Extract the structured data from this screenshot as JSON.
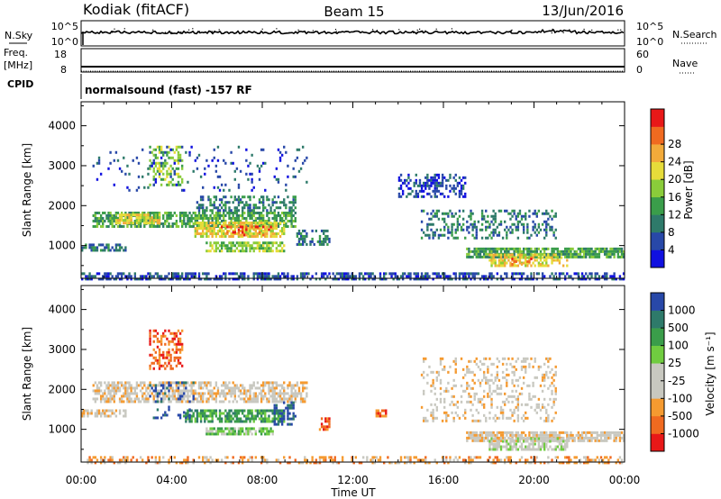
{
  "header": {
    "radar": "Kodiak (fitACF)",
    "beam": "Beam 15",
    "date": "13/Jun/2016"
  },
  "summary": {
    "nsky_label": "N.Sky",
    "nsky_ticks": [
      "10^5",
      "10^0"
    ],
    "nsearch_label": "N.Search",
    "nsearch_ticks": [
      "10^5",
      "10^0"
    ],
    "freq_label_1": "Freq.",
    "freq_label_2": "[MHz]",
    "freq_ticks": [
      "18",
      "8"
    ],
    "nave_label": "Nave",
    "nave_ticks": [
      "60",
      "0"
    ],
    "cpid_label": "CPID",
    "cpid_text": "normalsound (fast) -157 RF"
  },
  "colors": {
    "power": [
      "#1010e0",
      "#2848a8",
      "#2e7a6a",
      "#3a9d4a",
      "#8acc3a",
      "#e6dc3a",
      "#f2aa3a",
      "#f06a20",
      "#e81818"
    ],
    "velocity": [
      "#e81818",
      "#f06a20",
      "#f59a30",
      "#c8c8c0",
      "#c8c8c0",
      "#70cc40",
      "#3a9d4a",
      "#2e7a6a",
      "#2848a8"
    ]
  },
  "chart_data": [
    {
      "type": "heatmap",
      "title": "Power",
      "ylabel": "Slant Range [km]",
      "xlabel": "",
      "x_ticks": [
        "00:00",
        "04:00",
        "08:00",
        "12:00",
        "16:00",
        "20:00",
        "00:00"
      ],
      "xlim": [
        0,
        24
      ],
      "y_ticks": [
        1000,
        2000,
        3000,
        4000
      ],
      "ylim": [
        180,
        4600
      ],
      "colorbar": {
        "label": "Power [dB]",
        "ticks": [
          "4",
          "8",
          "12",
          "16",
          "20",
          "24",
          "28"
        ]
      },
      "regions": [
        {
          "x": [
            0.0,
            24.0
          ],
          "y": [
            180,
            330
          ],
          "level": 1,
          "density": 0.55
        },
        {
          "x": [
            0.5,
            9.5
          ],
          "y": [
            1500,
            1850
          ],
          "level": 3,
          "density": 0.7
        },
        {
          "x": [
            1.5,
            3.5
          ],
          "y": [
            1550,
            1800
          ],
          "level": 5,
          "density": 0.7
        },
        {
          "x": [
            5.0,
            9.0
          ],
          "y": [
            1200,
            1600
          ],
          "level": 5,
          "density": 0.75
        },
        {
          "x": [
            6.0,
            8.5
          ],
          "y": [
            1250,
            1500
          ],
          "level": 7,
          "density": 0.3
        },
        {
          "x": [
            5.0,
            9.5
          ],
          "y": [
            1850,
            2250
          ],
          "level": 2,
          "density": 0.5
        },
        {
          "x": [
            5.5,
            9.0
          ],
          "y": [
            850,
            1100
          ],
          "level": 4,
          "density": 0.7
        },
        {
          "x": [
            0.0,
            2.0
          ],
          "y": [
            850,
            1050
          ],
          "level": 2,
          "density": 0.6
        },
        {
          "x": [
            3.0,
            4.5
          ],
          "y": [
            2500,
            3500
          ],
          "level": 4,
          "density": 0.4
        },
        {
          "x": [
            0.5,
            10.0
          ],
          "y": [
            2400,
            3500
          ],
          "level": 1,
          "density": 0.08
        },
        {
          "x": [
            9.5,
            11.0
          ],
          "y": [
            1000,
            1400
          ],
          "level": 2,
          "density": 0.5
        },
        {
          "x": [
            14.0,
            17.0
          ],
          "y": [
            2200,
            2800
          ],
          "level": 1,
          "density": 0.45
        },
        {
          "x": [
            15.0,
            21.0
          ],
          "y": [
            1200,
            1900
          ],
          "level": 2,
          "density": 0.35
        },
        {
          "x": [
            17.0,
            24.0
          ],
          "y": [
            700,
            950
          ],
          "level": 3,
          "density": 0.8
        },
        {
          "x": [
            18.0,
            21.5
          ],
          "y": [
            500,
            800
          ],
          "level": 5,
          "density": 0.6
        },
        {
          "x": [
            19.0,
            20.5
          ],
          "y": [
            550,
            700
          ],
          "level": 7,
          "density": 0.3
        }
      ]
    },
    {
      "type": "heatmap",
      "title": "Velocity",
      "ylabel": "Slant Range [km]",
      "xlabel": "Time UT",
      "x_ticks": [
        "00:00",
        "04:00",
        "08:00",
        "12:00",
        "16:00",
        "20:00",
        "00:00"
      ],
      "xlim": [
        0,
        24
      ],
      "y_ticks": [
        1000,
        2000,
        3000,
        4000
      ],
      "ylim": [
        180,
        4600
      ],
      "colorbar": {
        "label": "Velocity [m s⁻¹]",
        "ticks": [
          "1000",
          "500",
          "100",
          "25",
          "-25",
          "-100",
          "-500",
          "-1000"
        ]
      },
      "regions": [
        {
          "x": [
            0.0,
            24.0
          ],
          "y": [
            180,
            330
          ],
          "level": 2,
          "density": 0.35
        },
        {
          "x": [
            0.5,
            10.0
          ],
          "y": [
            1700,
            2200
          ],
          "level": 3,
          "density": 0.6
        },
        {
          "x": [
            0.0,
            2.0
          ],
          "y": [
            1300,
            1500
          ],
          "level": 3,
          "density": 0.6
        },
        {
          "x": [
            4.5,
            9.0
          ],
          "y": [
            1200,
            1500
          ],
          "level": 6,
          "density": 0.7
        },
        {
          "x": [
            5.5,
            8.5
          ],
          "y": [
            850,
            1050
          ],
          "level": 5,
          "density": 0.7
        },
        {
          "x": [
            3.0,
            4.5
          ],
          "y": [
            2500,
            3500
          ],
          "level": 1,
          "density": 0.4
        },
        {
          "x": [
            3.0,
            5.0
          ],
          "y": [
            1300,
            2200
          ],
          "level": 8,
          "density": 0.2
        },
        {
          "x": [
            8.5,
            9.5
          ],
          "y": [
            1100,
            1700
          ],
          "level": 8,
          "density": 0.4
        },
        {
          "x": [
            10.5,
            11.0
          ],
          "y": [
            1000,
            1300
          ],
          "level": 1,
          "density": 0.6
        },
        {
          "x": [
            13.0,
            13.5
          ],
          "y": [
            1300,
            1500
          ],
          "level": 1,
          "density": 0.6
        },
        {
          "x": [
            15.0,
            21.0
          ],
          "y": [
            1200,
            2800
          ],
          "level": 3,
          "density": 0.25
        },
        {
          "x": [
            17.0,
            24.0
          ],
          "y": [
            700,
            950
          ],
          "level": 3,
          "density": 0.8
        },
        {
          "x": [
            18.0,
            21.5
          ],
          "y": [
            500,
            800
          ],
          "level": 4,
          "density": 0.7
        }
      ]
    }
  ]
}
